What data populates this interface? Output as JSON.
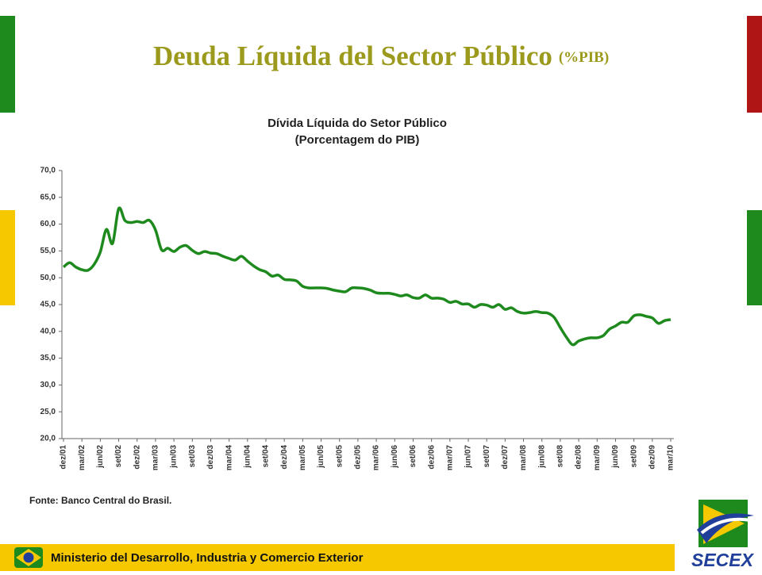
{
  "slide": {
    "title": "Deuda Líquida del Sector Público",
    "title_suffix": "(%PIB)"
  },
  "chart_data": {
    "type": "line",
    "title": "Dívida Líquida do Setor Público",
    "subtitle": "(Porcentagem do PIB)",
    "source": "Fonte: Banco Central do Brasil.",
    "color": "#1e8a1e",
    "grid": false,
    "ylim": [
      20,
      70
    ],
    "yticks": [
      {
        "value": 20,
        "label": "20,0"
      },
      {
        "value": 25,
        "label": "25,0"
      },
      {
        "value": 30,
        "label": "30,0"
      },
      {
        "value": 35,
        "label": "35,0"
      },
      {
        "value": 40,
        "label": "40,0"
      },
      {
        "value": 45,
        "label": "45,0"
      },
      {
        "value": 50,
        "label": "50,0"
      },
      {
        "value": 55,
        "label": "55,0"
      },
      {
        "value": 60,
        "label": "60,0"
      },
      {
        "value": 65,
        "label": "65,0"
      },
      {
        "value": 70,
        "label": "70,0"
      }
    ],
    "categories": [
      "dez/01",
      null,
      null,
      "mar/02",
      null,
      null,
      "jun/02",
      null,
      null,
      "set/02",
      null,
      null,
      "dez/02",
      null,
      null,
      "mar/03",
      null,
      null,
      "jun/03",
      null,
      null,
      "set/03",
      null,
      null,
      "dez/03",
      null,
      null,
      "mar/04",
      null,
      null,
      "jun/04",
      null,
      null,
      "set/04",
      null,
      null,
      "dez/04",
      null,
      null,
      "mar/05",
      null,
      null,
      "jun/05",
      null,
      null,
      "set/05",
      null,
      null,
      "dez/05",
      null,
      null,
      "mar/06",
      null,
      null,
      "jun/06",
      null,
      null,
      "set/06",
      null,
      null,
      "dez/06",
      null,
      null,
      "mar/07",
      null,
      null,
      "jun/07",
      null,
      null,
      "set/07",
      null,
      null,
      "dez/07",
      null,
      null,
      "mar/08",
      null,
      null,
      "jun/08",
      null,
      null,
      "set/08",
      null,
      null,
      "dez/08",
      null,
      null,
      "mar/09",
      null,
      null,
      "jun/09",
      null,
      null,
      "set/09",
      null,
      null,
      "dez/09",
      null,
      null,
      "mar/10"
    ],
    "values": [
      52.0,
      52.8,
      52.0,
      51.5,
      51.4,
      52.5,
      54.8,
      59.0,
      56.4,
      62.9,
      60.7,
      60.3,
      60.5,
      60.3,
      60.7,
      58.9,
      55.2,
      55.5,
      54.9,
      55.7,
      56.0,
      55.1,
      54.5,
      54.9,
      54.6,
      54.5,
      54.0,
      53.6,
      53.3,
      54.0,
      53.1,
      52.2,
      51.5,
      51.1,
      50.3,
      50.5,
      49.7,
      49.6,
      49.4,
      48.4,
      48.1,
      48.1,
      48.1,
      48.0,
      47.7,
      47.5,
      47.4,
      48.1,
      48.1,
      48.0,
      47.7,
      47.2,
      47.1,
      47.1,
      46.9,
      46.6,
      46.8,
      46.3,
      46.2,
      46.8,
      46.2,
      46.2,
      46.0,
      45.4,
      45.6,
      45.1,
      45.1,
      44.5,
      45.0,
      44.9,
      44.5,
      45.0,
      44.1,
      44.4,
      43.7,
      43.4,
      43.5,
      43.7,
      43.5,
      43.4,
      42.6,
      40.7,
      38.9,
      37.5,
      38.2,
      38.6,
      38.8,
      38.8,
      39.2,
      40.4,
      41.0,
      41.7,
      41.7,
      42.9,
      43.1,
      42.8,
      42.5,
      41.5,
      42.0,
      42.2
    ]
  },
  "footer": {
    "text": "Ministerio del Desarrollo, Industria y Comercio Exterior"
  },
  "logo": {
    "text": "SECEX"
  }
}
